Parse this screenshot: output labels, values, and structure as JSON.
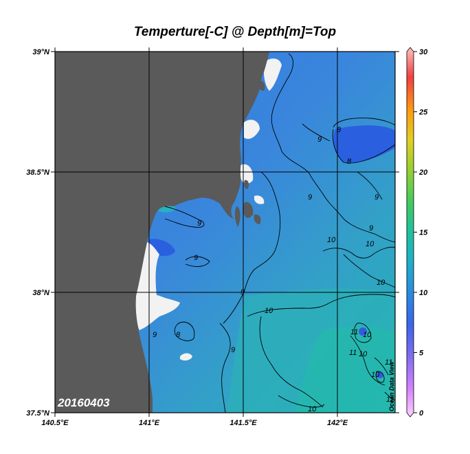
{
  "title": "Temperture[-C] @ Depth[m]=Top",
  "date_stamp": "20160403",
  "watermark": "Ocean Data View",
  "lat_ticks": [
    "39°N",
    "38.5°N",
    "38°N",
    "37.5°N"
  ],
  "lon_ticks": [
    "140.5°E",
    "141°E",
    "141.5°E",
    "142°E"
  ],
  "colorbar": {
    "ticks": [
      "30",
      "25",
      "20",
      "15",
      "10",
      "5",
      "0"
    ],
    "min": 0,
    "max": 30
  },
  "contour_labels": [
    "9",
    "8",
    "8",
    "9",
    "9",
    "9",
    "9",
    "10",
    "10",
    "9",
    "10",
    "9",
    "9",
    "8",
    "9",
    "10",
    "11",
    "10",
    "11",
    "10",
    "11",
    "10",
    "10",
    "11"
  ],
  "colors": {
    "land": "#5a5a5a",
    "water_cold": "#2f6ee0",
    "water_mid": "#3a8ed8",
    "water_warm": "#2fa8b8",
    "no_data": "#f2f2f2"
  }
}
